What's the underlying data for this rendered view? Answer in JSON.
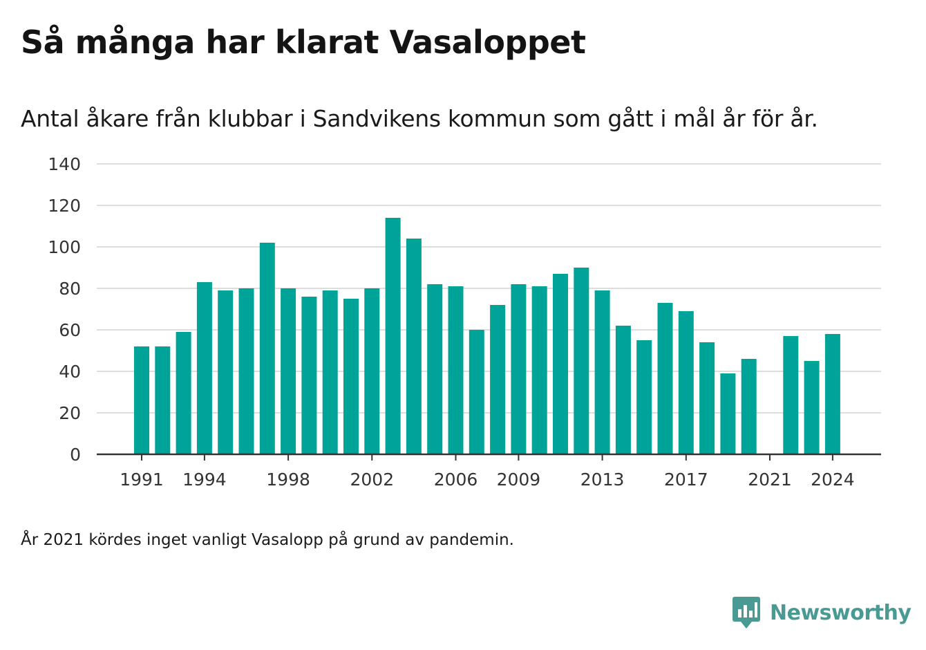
{
  "title": "Så många har klarat Vasaloppet",
  "subtitle": "Antal åkare från klubbar i Sandvikens kommun som gått i mål år för år.",
  "note": "År 2021 kördes inget vanligt Vasalopp på grund av pandemin.",
  "brand": {
    "name": "Newsworthy",
    "color": "#4a9a94",
    "icon": "newsworthy-logo-icon"
  },
  "colors": {
    "bar": "#00a398",
    "grid": "#dddddd",
    "axis": "#333333",
    "tick_text": "#333333"
  },
  "chart_data": {
    "type": "bar",
    "categories": [
      "1991",
      "1992",
      "1993",
      "1994",
      "1995",
      "1996",
      "1997",
      "1998",
      "1999",
      "2000",
      "2001",
      "2002",
      "2003",
      "2004",
      "2005",
      "2006",
      "2007",
      "2008",
      "2009",
      "2010",
      "2011",
      "2012",
      "2013",
      "2014",
      "2015",
      "2016",
      "2017",
      "2018",
      "2019",
      "2020",
      "2021",
      "2022",
      "2023",
      "2024"
    ],
    "values": [
      52,
      52,
      59,
      83,
      79,
      80,
      102,
      80,
      76,
      79,
      75,
      80,
      114,
      104,
      82,
      81,
      60,
      72,
      82,
      81,
      87,
      90,
      79,
      62,
      55,
      73,
      69,
      54,
      39,
      46,
      null,
      57,
      45,
      58
    ],
    "x_tick_labels": [
      "1991",
      "1994",
      "1998",
      "2002",
      "2006",
      "2009",
      "2013",
      "2017",
      "2021",
      "2024"
    ],
    "y_ticks": [
      0,
      20,
      40,
      60,
      80,
      100,
      120,
      140
    ],
    "ylim": [
      0,
      140
    ],
    "grid": true,
    "title": "Så många har klarat Vasaloppet",
    "subtitle": "Antal åkare från klubbar i Sandvikens kommun som gått i mål år för år."
  }
}
